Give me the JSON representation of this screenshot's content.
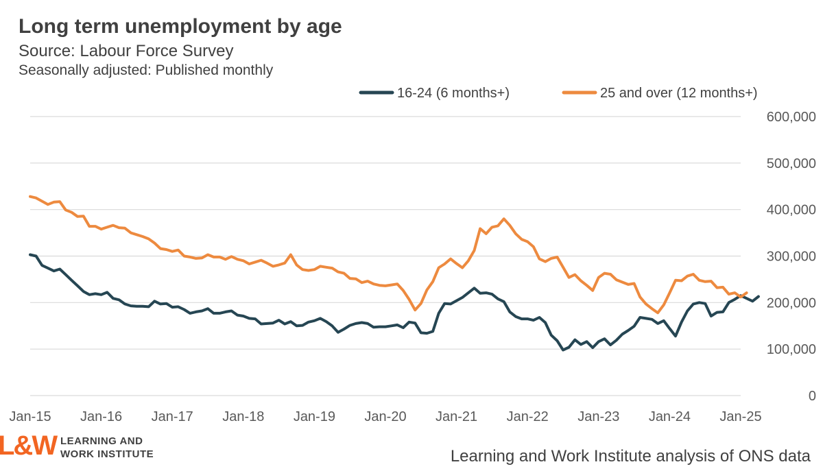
{
  "header": {
    "title": "Long term unemployment by age",
    "subtitle": "Source: Labour Force Survey",
    "subtitle2": "Seasonally adjusted: Published monthly"
  },
  "footer": {
    "logo_mark": "L&W",
    "logo_line1": "LEARNING AND",
    "logo_line2": "WORK INSTITUTE",
    "source_note": "Learning and Work Institute analysis of ONS data"
  },
  "chart_data": {
    "type": "line",
    "title": "Long term unemployment by age",
    "xlabel": "",
    "ylabel": "",
    "ylim": [
      0,
      600000
    ],
    "yticks": [
      "0",
      "100,000",
      "200,000",
      "300,000",
      "400,000",
      "500,000",
      "600,000"
    ],
    "ytick_values": [
      0,
      100000,
      200000,
      300000,
      400000,
      500000,
      600000
    ],
    "xticks": [
      "Jan-15",
      "Jan-16",
      "Jan-17",
      "Jan-18",
      "Jan-19",
      "Jan-20",
      "Jan-21",
      "Jan-22",
      "Jan-23",
      "Jan-24",
      "Jan-25"
    ],
    "x_start": "Jan-15",
    "x_end": "Jan-25",
    "grid": true,
    "legend_position": "top-right",
    "series": [
      {
        "name": "16-24 (6 months+)",
        "color": "#264653",
        "values": [
          [
            2015.0,
            303000
          ],
          [
            2015.083,
            300000
          ],
          [
            2015.167,
            280000
          ],
          [
            2015.25,
            274000
          ],
          [
            2015.333,
            268000
          ],
          [
            2015.417,
            272000
          ],
          [
            2015.5,
            260000
          ],
          [
            2015.583,
            248000
          ],
          [
            2015.667,
            236000
          ],
          [
            2015.75,
            224000
          ],
          [
            2015.833,
            217000
          ],
          [
            2015.917,
            219000
          ],
          [
            2016.0,
            217000
          ],
          [
            2016.083,
            222000
          ],
          [
            2016.167,
            209000
          ],
          [
            2016.25,
            206000
          ],
          [
            2016.333,
            197000
          ],
          [
            2016.417,
            193000
          ],
          [
            2016.5,
            192000
          ],
          [
            2016.583,
            192000
          ],
          [
            2016.667,
            191000
          ],
          [
            2016.75,
            203000
          ],
          [
            2016.833,
            197000
          ],
          [
            2016.917,
            198000
          ],
          [
            2017.0,
            190000
          ],
          [
            2017.083,
            191000
          ],
          [
            2017.167,
            185000
          ],
          [
            2017.25,
            177000
          ],
          [
            2017.333,
            180000
          ],
          [
            2017.417,
            182000
          ],
          [
            2017.5,
            187000
          ],
          [
            2017.583,
            177000
          ],
          [
            2017.667,
            177000
          ],
          [
            2017.75,
            180000
          ],
          [
            2017.833,
            182000
          ],
          [
            2017.917,
            173000
          ],
          [
            2018.0,
            171000
          ],
          [
            2018.083,
            166000
          ],
          [
            2018.167,
            165000
          ],
          [
            2018.25,
            154000
          ],
          [
            2018.333,
            155000
          ],
          [
            2018.417,
            156000
          ],
          [
            2018.5,
            162000
          ],
          [
            2018.583,
            154000
          ],
          [
            2018.667,
            159000
          ],
          [
            2018.75,
            150000
          ],
          [
            2018.833,
            151000
          ],
          [
            2018.917,
            158000
          ],
          [
            2019.0,
            161000
          ],
          [
            2019.083,
            166000
          ],
          [
            2019.167,
            159000
          ],
          [
            2019.25,
            150000
          ],
          [
            2019.333,
            136000
          ],
          [
            2019.417,
            143000
          ],
          [
            2019.5,
            151000
          ],
          [
            2019.583,
            155000
          ],
          [
            2019.667,
            157000
          ],
          [
            2019.75,
            155000
          ],
          [
            2019.833,
            147000
          ],
          [
            2019.917,
            148000
          ],
          [
            2020.0,
            148000
          ],
          [
            2020.083,
            150000
          ],
          [
            2020.167,
            152000
          ],
          [
            2020.25,
            146000
          ],
          [
            2020.333,
            158000
          ],
          [
            2020.417,
            156000
          ],
          [
            2020.5,
            135000
          ],
          [
            2020.583,
            134000
          ],
          [
            2020.667,
            138000
          ],
          [
            2020.75,
            177000
          ],
          [
            2020.833,
            198000
          ],
          [
            2020.917,
            197000
          ],
          [
            2021.0,
            204000
          ],
          [
            2021.083,
            211000
          ],
          [
            2021.167,
            221000
          ],
          [
            2021.25,
            231000
          ],
          [
            2021.333,
            220000
          ],
          [
            2021.417,
            221000
          ],
          [
            2021.5,
            218000
          ],
          [
            2021.583,
            208000
          ],
          [
            2021.667,
            202000
          ],
          [
            2021.75,
            180000
          ],
          [
            2021.833,
            170000
          ],
          [
            2021.917,
            165000
          ],
          [
            2022.0,
            165000
          ],
          [
            2022.083,
            162000
          ],
          [
            2022.167,
            168000
          ],
          [
            2022.25,
            157000
          ],
          [
            2022.333,
            130000
          ],
          [
            2022.417,
            118000
          ],
          [
            2022.5,
            98000
          ],
          [
            2022.583,
            104000
          ],
          [
            2022.667,
            120000
          ],
          [
            2022.75,
            110000
          ],
          [
            2022.833,
            116000
          ],
          [
            2022.917,
            103000
          ],
          [
            2023.0,
            116000
          ],
          [
            2023.083,
            122000
          ],
          [
            2023.167,
            109000
          ],
          [
            2023.25,
            119000
          ],
          [
            2023.333,
            132000
          ],
          [
            2023.417,
            140000
          ],
          [
            2023.5,
            149000
          ],
          [
            2023.583,
            168000
          ],
          [
            2023.667,
            166000
          ],
          [
            2023.75,
            164000
          ],
          [
            2023.833,
            155000
          ],
          [
            2023.917,
            161000
          ],
          [
            2024.0,
            144000
          ],
          [
            2024.083,
            128000
          ],
          [
            2024.167,
            158000
          ],
          [
            2024.25,
            182000
          ],
          [
            2024.333,
            197000
          ],
          [
            2024.417,
            200000
          ],
          [
            2024.5,
            198000
          ],
          [
            2024.583,
            171000
          ],
          [
            2024.667,
            179000
          ],
          [
            2024.75,
            180000
          ],
          [
            2024.833,
            200000
          ],
          [
            2024.917,
            207000
          ],
          [
            2025.0,
            215000
          ],
          [
            2025.083,
            209000
          ],
          [
            2025.167,
            203000
          ],
          [
            2025.25,
            213000
          ]
        ]
      },
      {
        "name": "25 and over (12 months+)",
        "color": "#ed8a3f",
        "values": [
          [
            2015.0,
            428000
          ],
          [
            2015.083,
            425000
          ],
          [
            2015.167,
            418000
          ],
          [
            2015.25,
            411000
          ],
          [
            2015.333,
            416000
          ],
          [
            2015.417,
            417000
          ],
          [
            2015.5,
            399000
          ],
          [
            2015.583,
            394000
          ],
          [
            2015.667,
            385000
          ],
          [
            2015.75,
            386000
          ],
          [
            2015.833,
            364000
          ],
          [
            2015.917,
            364000
          ],
          [
            2016.0,
            358000
          ],
          [
            2016.083,
            362000
          ],
          [
            2016.167,
            366000
          ],
          [
            2016.25,
            361000
          ],
          [
            2016.333,
            360000
          ],
          [
            2016.417,
            350000
          ],
          [
            2016.5,
            346000
          ],
          [
            2016.583,
            342000
          ],
          [
            2016.667,
            337000
          ],
          [
            2016.75,
            328000
          ],
          [
            2016.833,
            316000
          ],
          [
            2016.917,
            314000
          ],
          [
            2017.0,
            310000
          ],
          [
            2017.083,
            313000
          ],
          [
            2017.167,
            300000
          ],
          [
            2017.25,
            298000
          ],
          [
            2017.333,
            295000
          ],
          [
            2017.417,
            296000
          ],
          [
            2017.5,
            303000
          ],
          [
            2017.583,
            298000
          ],
          [
            2017.667,
            298000
          ],
          [
            2017.75,
            293000
          ],
          [
            2017.833,
            299000
          ],
          [
            2017.917,
            293000
          ],
          [
            2018.0,
            290000
          ],
          [
            2018.083,
            283000
          ],
          [
            2018.167,
            287000
          ],
          [
            2018.25,
            291000
          ],
          [
            2018.333,
            285000
          ],
          [
            2018.417,
            278000
          ],
          [
            2018.5,
            281000
          ],
          [
            2018.583,
            285000
          ],
          [
            2018.667,
            303000
          ],
          [
            2018.75,
            281000
          ],
          [
            2018.833,
            271000
          ],
          [
            2018.917,
            269000
          ],
          [
            2019.0,
            271000
          ],
          [
            2019.083,
            278000
          ],
          [
            2019.167,
            276000
          ],
          [
            2019.25,
            274000
          ],
          [
            2019.333,
            266000
          ],
          [
            2019.417,
            263000
          ],
          [
            2019.5,
            252000
          ],
          [
            2019.583,
            251000
          ],
          [
            2019.667,
            243000
          ],
          [
            2019.75,
            246000
          ],
          [
            2019.833,
            240000
          ],
          [
            2019.917,
            237000
          ],
          [
            2020.0,
            236000
          ],
          [
            2020.083,
            238000
          ],
          [
            2020.167,
            240000
          ],
          [
            2020.25,
            226000
          ],
          [
            2020.333,
            207000
          ],
          [
            2020.417,
            184000
          ],
          [
            2020.5,
            198000
          ],
          [
            2020.583,
            227000
          ],
          [
            2020.667,
            245000
          ],
          [
            2020.75,
            275000
          ],
          [
            2020.833,
            283000
          ],
          [
            2020.917,
            294000
          ],
          [
            2021.0,
            284000
          ],
          [
            2021.083,
            275000
          ],
          [
            2021.167,
            290000
          ],
          [
            2021.25,
            312000
          ],
          [
            2021.333,
            359000
          ],
          [
            2021.417,
            348000
          ],
          [
            2021.5,
            362000
          ],
          [
            2021.583,
            365000
          ],
          [
            2021.667,
            380000
          ],
          [
            2021.75,
            366000
          ],
          [
            2021.833,
            348000
          ],
          [
            2021.917,
            336000
          ],
          [
            2022.0,
            331000
          ],
          [
            2022.083,
            320000
          ],
          [
            2022.167,
            294000
          ],
          [
            2022.25,
            288000
          ],
          [
            2022.333,
            295000
          ],
          [
            2022.417,
            298000
          ],
          [
            2022.5,
            276000
          ],
          [
            2022.583,
            254000
          ],
          [
            2022.667,
            260000
          ],
          [
            2022.75,
            247000
          ],
          [
            2022.833,
            237000
          ],
          [
            2022.917,
            226000
          ],
          [
            2023.0,
            254000
          ],
          [
            2023.083,
            263000
          ],
          [
            2023.167,
            261000
          ],
          [
            2023.25,
            249000
          ],
          [
            2023.333,
            244000
          ],
          [
            2023.417,
            239000
          ],
          [
            2023.5,
            241000
          ],
          [
            2023.583,
            212000
          ],
          [
            2023.667,
            197000
          ],
          [
            2023.75,
            187000
          ],
          [
            2023.833,
            178000
          ],
          [
            2023.917,
            195000
          ],
          [
            2024.0,
            221000
          ],
          [
            2024.083,
            248000
          ],
          [
            2024.167,
            247000
          ],
          [
            2024.25,
            257000
          ],
          [
            2024.333,
            261000
          ],
          [
            2024.417,
            248000
          ],
          [
            2024.5,
            245000
          ],
          [
            2024.583,
            246000
          ],
          [
            2024.667,
            232000
          ],
          [
            2024.75,
            233000
          ],
          [
            2024.833,
            218000
          ],
          [
            2024.917,
            221000
          ],
          [
            2025.0,
            212000
          ],
          [
            2025.083,
            221000
          ]
        ]
      }
    ]
  }
}
